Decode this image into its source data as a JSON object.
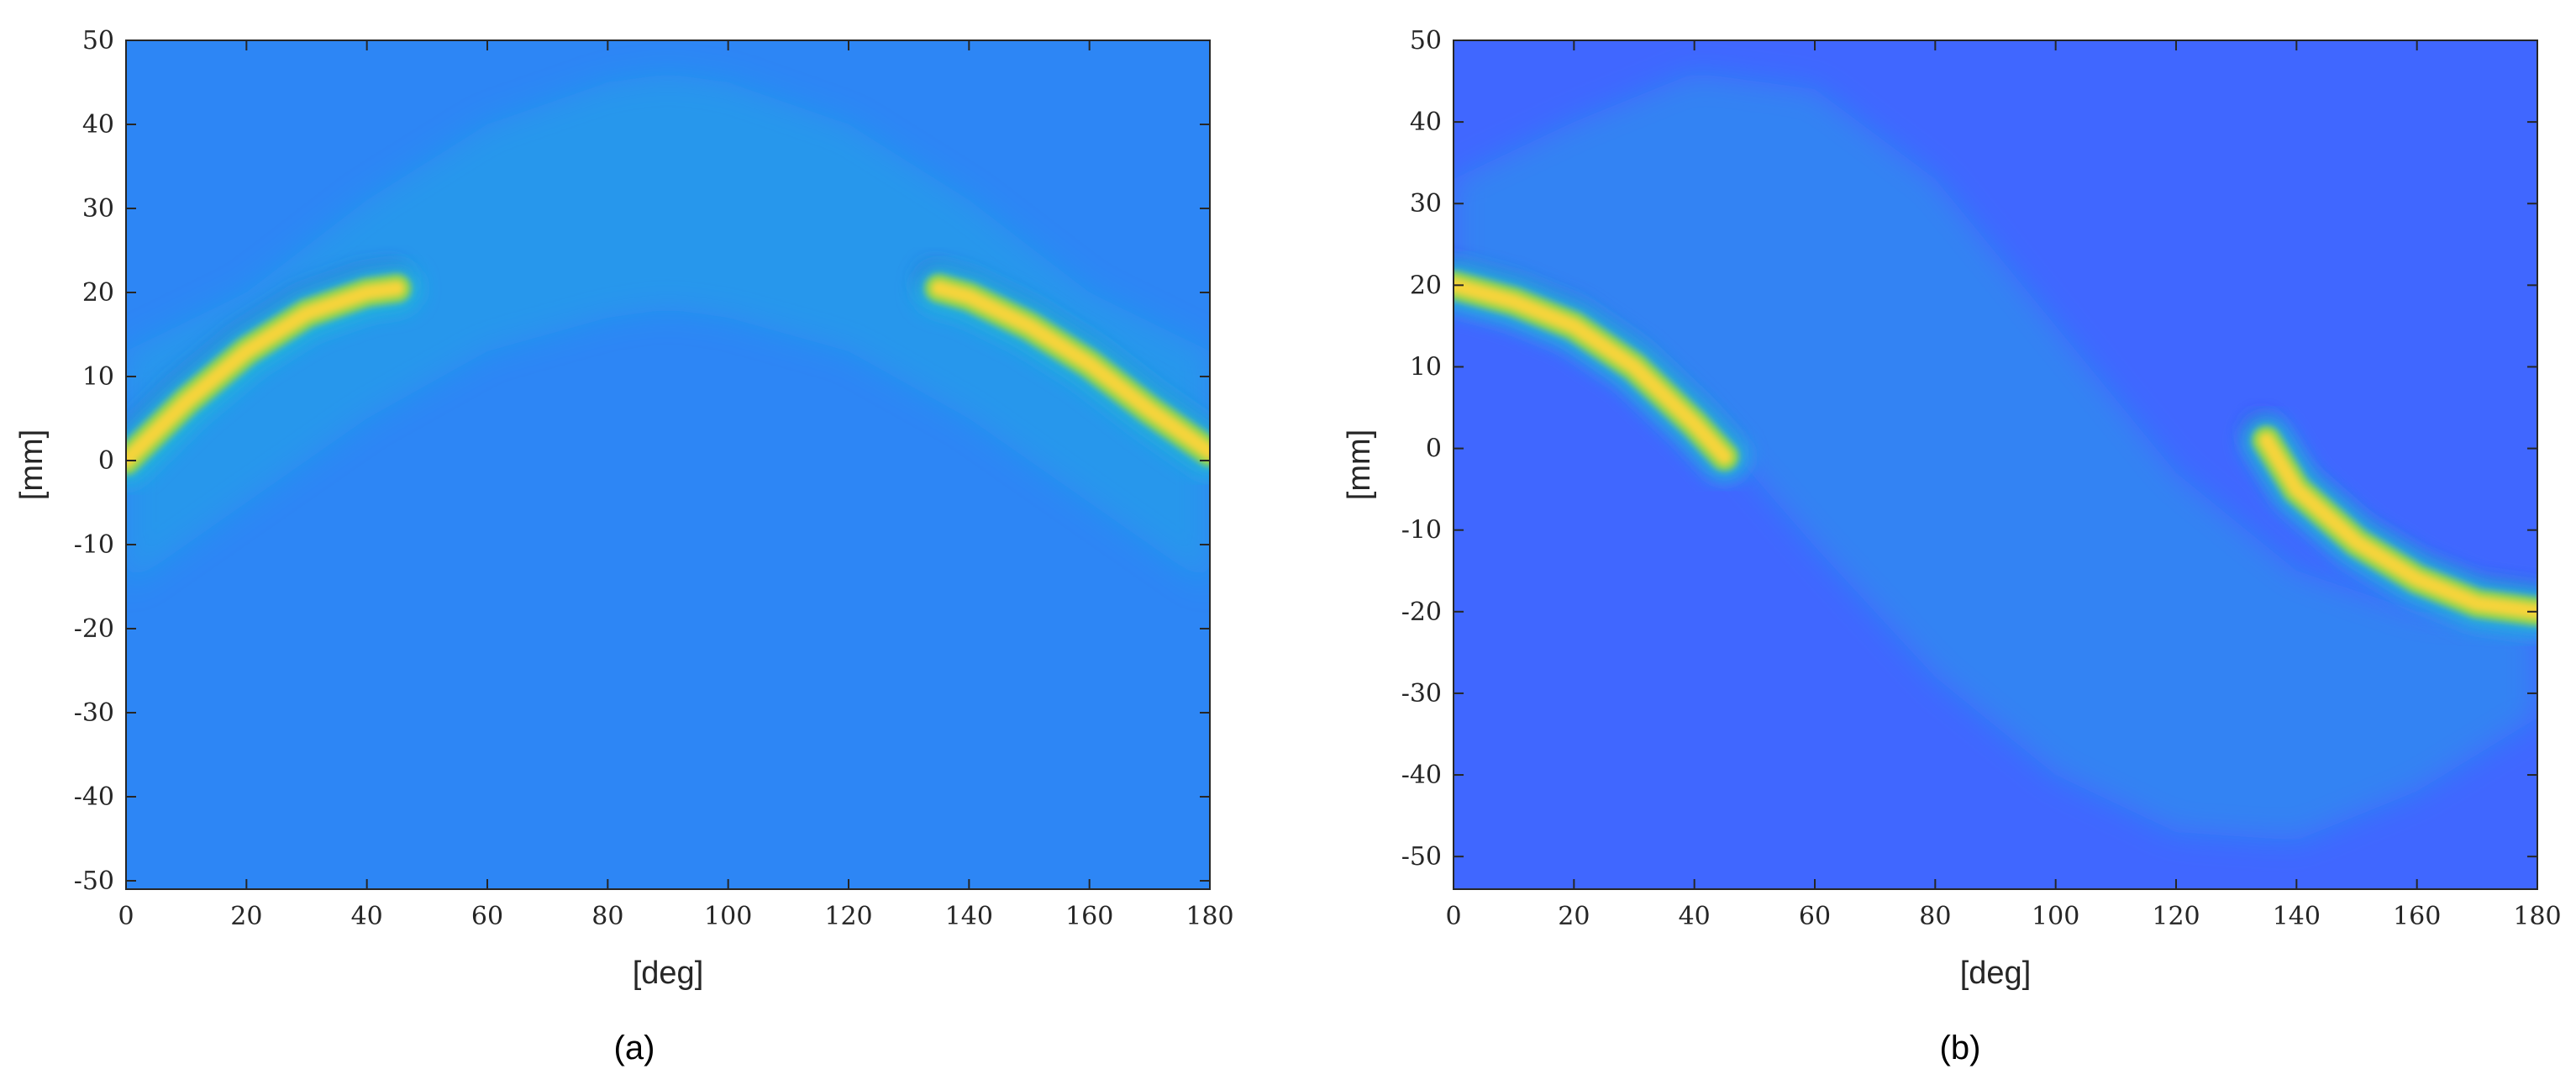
{
  "chart_data": [
    {
      "type": "heatmap",
      "caption": "(a)",
      "xlabel": "[deg]",
      "ylabel": "[mm]",
      "xlim": [
        0,
        180
      ],
      "ylim": [
        -51,
        50
      ],
      "xticks": [
        0,
        20,
        40,
        60,
        80,
        100,
        120,
        140,
        160,
        180
      ],
      "yticks": [
        -50,
        -40,
        -30,
        -20,
        -10,
        0,
        10,
        20,
        30,
        40,
        50
      ],
      "background_color": "#2d86f5",
      "highlight_color": "#f5d43a",
      "faint_color": "#21b8dc",
      "dark_color": "#3a3fd4",
      "bright_ridges": [
        {
          "points": [
            [
              0,
              0
            ],
            [
              10,
              7
            ],
            [
              20,
              13
            ],
            [
              30,
              17.5
            ],
            [
              40,
              20
            ],
            [
              45,
              20.5
            ]
          ]
        },
        {
          "points": [
            [
              135,
              20.5
            ],
            [
              140,
              19.5
            ],
            [
              150,
              16
            ],
            [
              160,
              11.5
            ],
            [
              170,
              6
            ],
            [
              180,
              1
            ]
          ]
        }
      ],
      "faint_band_envelope": {
        "upper": [
          [
            0,
            13
          ],
          [
            20,
            20
          ],
          [
            40,
            31
          ],
          [
            60,
            40
          ],
          [
            80,
            45
          ],
          [
            90,
            46
          ],
          [
            100,
            45
          ],
          [
            120,
            40
          ],
          [
            140,
            31
          ],
          [
            160,
            20
          ],
          [
            180,
            13
          ]
        ],
        "lower": [
          [
            0,
            -15
          ],
          [
            20,
            -5
          ],
          [
            40,
            5
          ],
          [
            60,
            13
          ],
          [
            80,
            17
          ],
          [
            90,
            18
          ],
          [
            100,
            17
          ],
          [
            120,
            13
          ],
          [
            140,
            5
          ],
          [
            160,
            -5
          ],
          [
            180,
            -15
          ]
        ]
      }
    },
    {
      "type": "heatmap",
      "caption": "(b)",
      "xlabel": "[deg]",
      "ylabel": "[mm]",
      "xlim": [
        0,
        180
      ],
      "ylim": [
        -54,
        50
      ],
      "xticks": [
        0,
        20,
        40,
        60,
        80,
        100,
        120,
        140,
        160,
        180
      ],
      "yticks": [
        -50,
        -40,
        -30,
        -20,
        -10,
        0,
        10,
        20,
        30,
        40,
        50
      ],
      "background_color": "#4067ff",
      "highlight_color": "#f5d43a",
      "faint_color": "#21b8dc",
      "dark_color": "#3a3fd4",
      "bright_ridges": [
        {
          "points": [
            [
              0,
              20
            ],
            [
              10,
              18
            ],
            [
              20,
              15
            ],
            [
              30,
              10
            ],
            [
              40,
              3
            ],
            [
              45,
              -1
            ]
          ]
        },
        {
          "points": [
            [
              135,
              1
            ],
            [
              140,
              -5
            ],
            [
              150,
              -11.5
            ],
            [
              160,
              -16
            ],
            [
              170,
              -19
            ],
            [
              180,
              -20
            ]
          ]
        }
      ],
      "faint_band_envelope": {
        "upper": [
          [
            0,
            33
          ],
          [
            20,
            40
          ],
          [
            40,
            46
          ],
          [
            60,
            44
          ],
          [
            80,
            33
          ],
          [
            100,
            15
          ],
          [
            120,
            -3
          ],
          [
            140,
            -15
          ],
          [
            160,
            -20
          ],
          [
            180,
            -21
          ]
        ],
        "lower": [
          [
            0,
            20
          ],
          [
            20,
            17
          ],
          [
            40,
            5
          ],
          [
            60,
            -12
          ],
          [
            80,
            -28
          ],
          [
            100,
            -40
          ],
          [
            120,
            -47
          ],
          [
            140,
            -48
          ],
          [
            160,
            -42
          ],
          [
            180,
            -33
          ]
        ]
      }
    }
  ]
}
